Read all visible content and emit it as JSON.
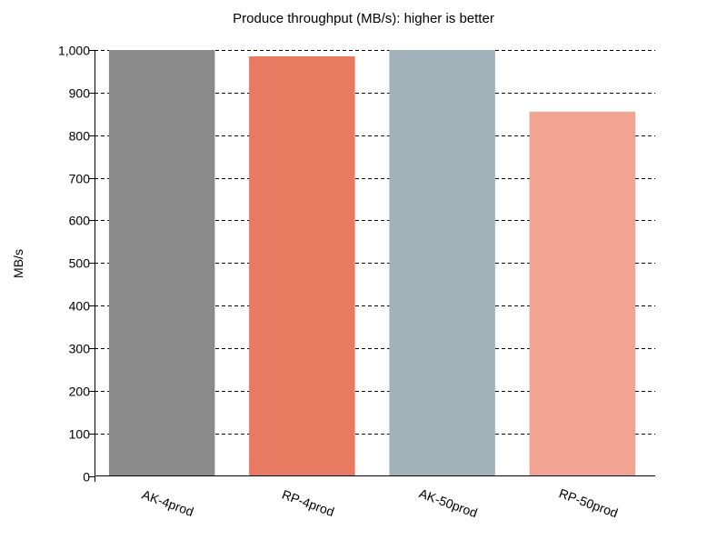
{
  "chart_data": {
    "type": "bar",
    "title": "Produce throughput (MB/s): higher is better",
    "xlabel": "",
    "ylabel": "MB/s",
    "categories": [
      "AK-4prod",
      "RP-4prod",
      "AK-50prod",
      "RP-50prod"
    ],
    "values": [
      1000,
      985,
      1000,
      855
    ],
    "ylim": [
      0,
      1000
    ],
    "y_ticks": [
      0,
      100,
      200,
      300,
      400,
      500,
      600,
      700,
      800,
      900,
      1000
    ],
    "y_tick_labels": [
      "0",
      "100",
      "200",
      "300",
      "400",
      "500",
      "600",
      "700",
      "800",
      "900",
      "1,000"
    ],
    "bar_colors": [
      "#8a8a8a",
      "#e97a62",
      "#a2b2b9",
      "#f3a392"
    ],
    "grid": "horizontal dashed",
    "legend": "none"
  }
}
